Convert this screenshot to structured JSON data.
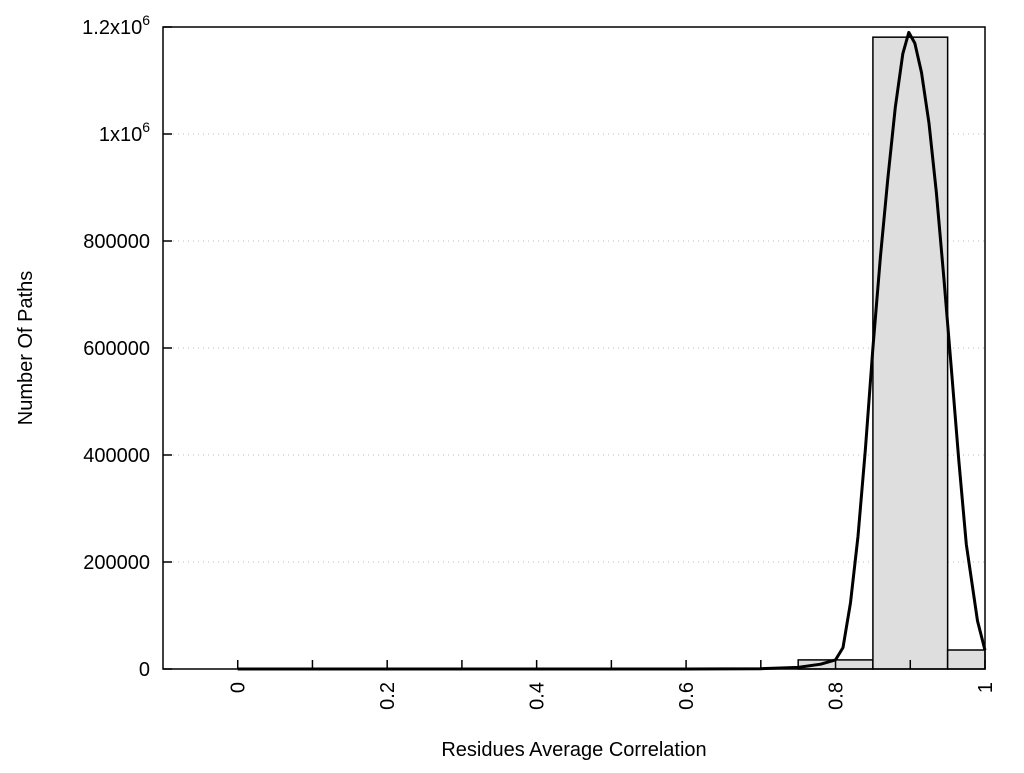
{
  "chart_data": {
    "type": "bar",
    "title": "",
    "xlabel": "Residues Average Correlation",
    "ylabel": "Number Of Paths",
    "xlim": [
      -0.1,
      1.0
    ],
    "ylim": [
      0,
      1200000
    ],
    "grid": "horizontal dotted",
    "legend": "none",
    "x_ticks": [
      "0",
      "0.2",
      "0.4",
      "0.6",
      "0.8",
      "1"
    ],
    "x_tick_values": [
      0,
      0.2,
      0.4,
      0.6,
      0.8,
      1.0
    ],
    "x_minor_tick_values": [
      0.1,
      0.3,
      0.5,
      0.7,
      0.9
    ],
    "y_ticks": [
      {
        "value": 0,
        "label": "0",
        "sup": ""
      },
      {
        "value": 200000,
        "label": "200000",
        "sup": ""
      },
      {
        "value": 400000,
        "label": "400000",
        "sup": ""
      },
      {
        "value": 600000,
        "label": "600000",
        "sup": ""
      },
      {
        "value": 800000,
        "label": "800000",
        "sup": ""
      },
      {
        "value": 1000000,
        "label": "1x10",
        "sup": "6"
      },
      {
        "value": 1200000,
        "label": "1.2x10",
        "sup": "6"
      }
    ],
    "bars": [
      {
        "from": 0.75,
        "to": 0.85,
        "value": 17000
      },
      {
        "from": 0.85,
        "to": 0.95,
        "value": 1181000
      },
      {
        "from": 0.95,
        "to": 1.0,
        "value": 35500
      }
    ],
    "bar_color": "#dedede",
    "curve": {
      "x": [
        0,
        0.1,
        0.2,
        0.3,
        0.4,
        0.5,
        0.6,
        0.7,
        0.75,
        0.78,
        0.8,
        0.81,
        0.82,
        0.83,
        0.84,
        0.85,
        0.86,
        0.87,
        0.88,
        0.89,
        0.898,
        0.906,
        0.915,
        0.925,
        0.935,
        0.945,
        0.955,
        0.965,
        0.975,
        0.99,
        1.0
      ],
      "y": [
        0,
        0,
        0,
        0,
        0,
        0,
        0,
        500,
        3000,
        9000,
        17000,
        40000,
        124000,
        248000,
        411000,
        600000,
        770000,
        918000,
        1050000,
        1150000,
        1190000,
        1170000,
        1115000,
        1020000,
        890000,
        730000,
        560000,
        390000,
        233000,
        90000,
        35000
      ],
      "color": "#000000"
    }
  }
}
